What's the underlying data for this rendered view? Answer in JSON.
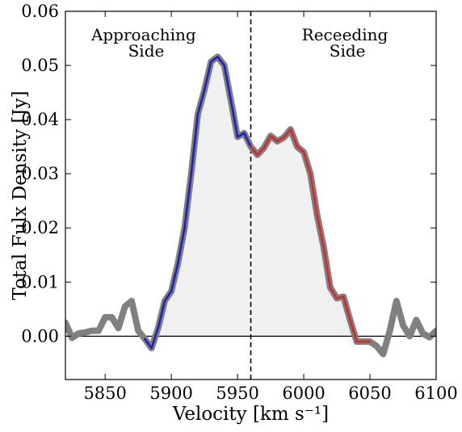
{
  "chart_data": {
    "type": "line",
    "xlabel": "Velocity [km s⁻¹]",
    "ylabel": "Total Fulx Density [Jy]",
    "xlim": [
      5820,
      6100
    ],
    "ylim": [
      -0.008,
      0.06
    ],
    "xticks": [
      5850,
      5900,
      5950,
      6000,
      6050,
      6100
    ],
    "yticks": [
      0.0,
      0.01,
      0.02,
      0.03,
      0.04,
      0.05,
      0.06
    ],
    "ytick_labels": [
      "0.00",
      "0.01",
      "0.02",
      "0.03",
      "0.04",
      "0.05",
      "0.06"
    ],
    "systemic_velocity": 5960,
    "zero_line": 0.0,
    "annotations": [
      {
        "lines": [
          "Approaching",
          "Side"
        ],
        "x": 5881,
        "y": 0.0555
      },
      {
        "lines": [
          "Receeding",
          "Side"
        ],
        "x": 6033,
        "y": 0.0555
      }
    ],
    "series": [
      {
        "x": [
          5820,
          5825,
          5830,
          5835,
          5840,
          5845,
          5850,
          5855,
          5860,
          5865,
          5870,
          5875,
          5880,
          5885,
          5890,
          5895,
          5900,
          5905,
          5910,
          5915,
          5920,
          5925,
          5930,
          5935,
          5940,
          5945,
          5950,
          5955,
          5960,
          5965,
          5970,
          5975,
          5980,
          5985,
          5990,
          5995,
          6000,
          6005,
          6010,
          6015,
          6020,
          6025,
          6030,
          6035,
          6040,
          6045,
          6050,
          6055,
          6060,
          6065,
          6070,
          6075,
          6080,
          6085,
          6090,
          6095,
          6100
        ],
        "y": [
          0.0025,
          -0.0003,
          0.0005,
          0.0007,
          0.001,
          0.001,
          0.0035,
          0.0035,
          0.0015,
          0.0055,
          0.0065,
          0.001,
          -0.0005,
          -0.0022,
          0.0015,
          0.0065,
          0.0083,
          0.0135,
          0.02,
          0.03,
          0.041,
          0.0455,
          0.0507,
          0.0516,
          0.05,
          0.0435,
          0.0368,
          0.0375,
          0.035,
          0.0335,
          0.0348,
          0.037,
          0.036,
          0.0367,
          0.0382,
          0.035,
          0.034,
          0.03,
          0.0225,
          0.0165,
          0.009,
          0.007,
          0.0073,
          0.003,
          -0.001,
          -0.001,
          -0.001,
          -0.0018,
          -0.0033,
          0.001,
          0.0065,
          0.002,
          0.0,
          0.003,
          0.0005,
          -0.0002,
          0.001
        ],
        "color": "#808080"
      }
    ],
    "highlight_segments": [
      {
        "side": "approaching",
        "x_range": [
          5880,
          5960
        ],
        "color": "#1f1fbf"
      },
      {
        "side": "receding",
        "x_range": [
          5960,
          6050
        ],
        "color": "#d42a2a"
      }
    ],
    "fill_region": {
      "x_range": [
        5880,
        6050
      ],
      "color": "#f0f0f0"
    }
  }
}
